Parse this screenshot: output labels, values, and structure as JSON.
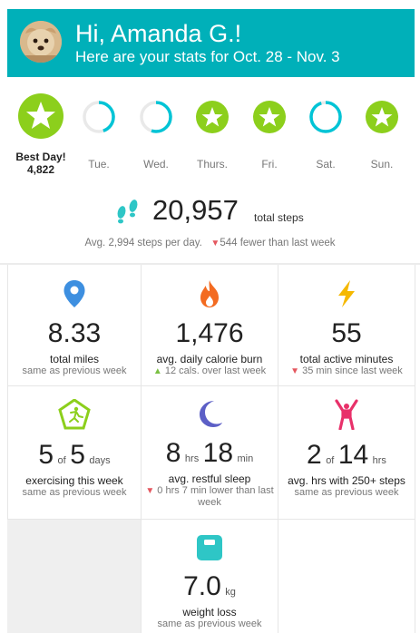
{
  "header": {
    "greeting": "Hi, Amanda G.!",
    "subtitle": "Here are your stats for Oct. 28 - Nov. 3",
    "bg_color": "#00b0b9"
  },
  "days": [
    {
      "label": "Best Day!",
      "value": "4,822",
      "status": "goal-met",
      "progress": 1.0
    },
    {
      "label": "Tue.",
      "status": "partial",
      "progress": 0.45
    },
    {
      "label": "Wed.",
      "status": "partial",
      "progress": 0.55
    },
    {
      "label": "Thurs.",
      "status": "goal-met",
      "progress": 1.0
    },
    {
      "label": "Fri.",
      "status": "goal-met",
      "progress": 1.0
    },
    {
      "label": "Sat.",
      "status": "partial",
      "progress": 0.95
    },
    {
      "label": "Sun.",
      "status": "goal-met",
      "progress": 1.0
    }
  ],
  "steps": {
    "total": "20,957",
    "unit": "total steps",
    "avg": "Avg. 2,994 steps per day.",
    "compare": "544 fewer than last week"
  },
  "stats": [
    {
      "icon": "location-pin-icon",
      "value": "8.33",
      "label": "total miles",
      "sub": "same as previous week",
      "trend": "none"
    },
    {
      "icon": "flame-icon",
      "value": "1,476",
      "label": "avg. daily calorie burn",
      "sub": "12 cals. over last week",
      "trend": "up"
    },
    {
      "icon": "lightning-icon",
      "value": "55",
      "label": "total active minutes",
      "sub": "35 min since last week",
      "trend": "down"
    },
    {
      "icon": "exercise-badge-icon",
      "value_a": "5",
      "of": "of",
      "value_b": "5",
      "unit": "days",
      "label": "exercising this week",
      "sub": "same as previous week",
      "trend": "none"
    },
    {
      "icon": "moon-icon",
      "value_a": "8",
      "unit_a": "hrs",
      "value_b": "18",
      "unit_b": "min",
      "label": "avg. restful sleep",
      "sub": "0 hrs 7 min lower than last week",
      "trend": "down"
    },
    {
      "icon": "stretching-person-icon",
      "value_a": "2",
      "of": "of",
      "value_b": "14",
      "unit": "hrs",
      "label": "avg. hrs with 250+ steps",
      "sub": "same as previous week",
      "trend": "none"
    },
    {
      "icon": "scale-icon",
      "value": "7.0",
      "unit": "kg",
      "label": "weight loss",
      "sub": "same as previous week",
      "trend": "none"
    }
  ],
  "colors": {
    "green": "#8ccf1c",
    "teal": "#00c4d6",
    "blue_pin": "#3d8fe0",
    "orange_flame": "#f36b21",
    "yellow_bolt": "#f5b800",
    "purple_moon": "#5c5fc6",
    "pink_person": "#e8316a",
    "teal_scale": "#2ec6c6",
    "down_red": "#e4575f",
    "up_green": "#7bc043"
  }
}
